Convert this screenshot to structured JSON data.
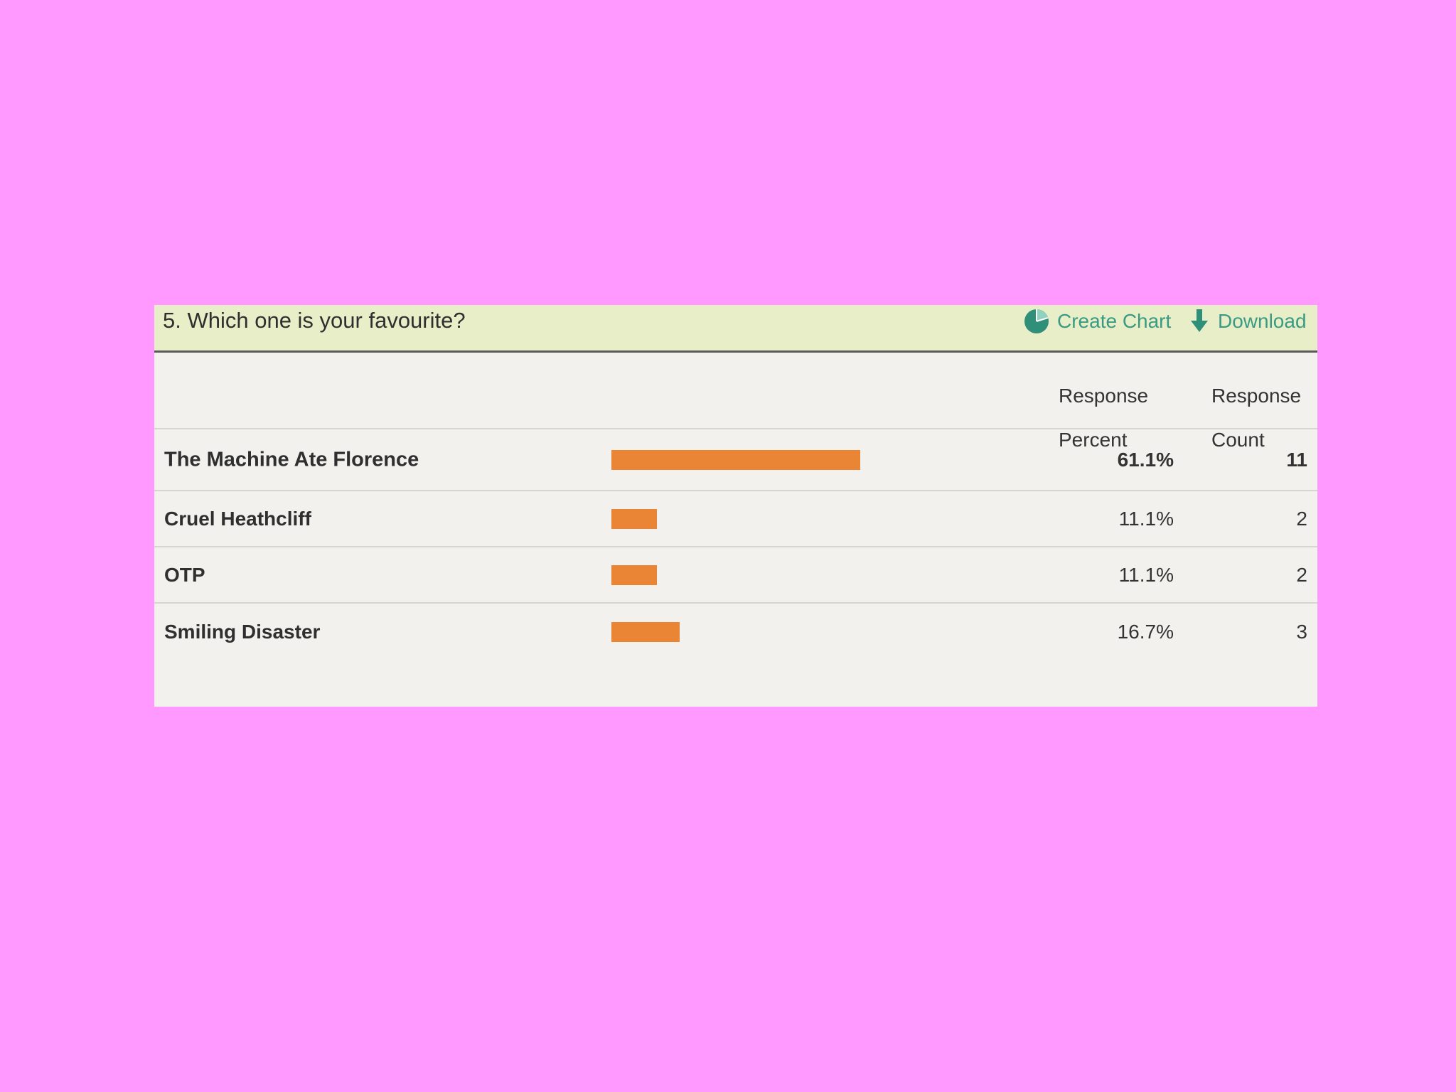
{
  "question": {
    "title": "5. Which one is your favourite?"
  },
  "actions": {
    "create_chart": {
      "label": "Create Chart",
      "icon": "pie-chart-icon"
    },
    "download": {
      "label": "Download",
      "icon": "download-arrow-icon"
    }
  },
  "columns": {
    "percent_header": "Response Percent",
    "count_header": "Response Count"
  },
  "colors": {
    "bar": "#ea8535",
    "accent": "#3a9b84",
    "header_bg": "#e8eec7",
    "page_bg": "#ff99ff"
  },
  "answers": [
    {
      "label": "The Machine Ate Florence",
      "percent": "61.1%",
      "count": "11",
      "fraction": 0.611
    },
    {
      "label": "Cruel Heathcliff",
      "percent": "11.1%",
      "count": "2",
      "fraction": 0.111
    },
    {
      "label": "OTP",
      "percent": "11.1%",
      "count": "2",
      "fraction": 0.111
    },
    {
      "label": "Smiling Disaster",
      "percent": "16.7%",
      "count": "3",
      "fraction": 0.167
    }
  ]
}
